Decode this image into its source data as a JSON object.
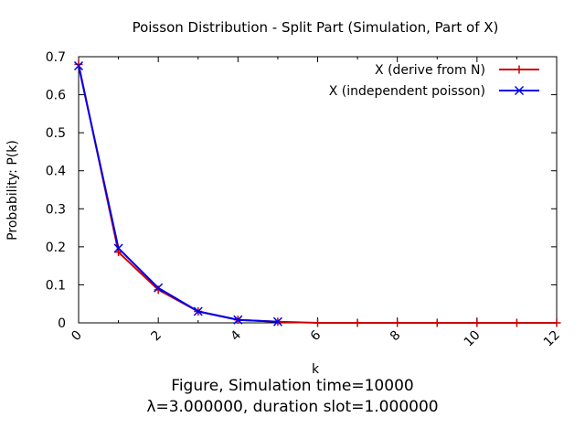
{
  "chart_data": {
    "type": "line",
    "title": "Poisson Distribution - Split Part (Simulation, Part of X)",
    "xlabel": "k",
    "ylabel": "Probability: P(k)",
    "xlim": [
      0,
      12
    ],
    "ylim": [
      0,
      0.7
    ],
    "xticks": [
      "0",
      "2",
      "4",
      "6",
      "8",
      "10",
      "12"
    ],
    "yticks": [
      "0",
      "0.1",
      "0.2",
      "0.3",
      "0.4",
      "0.5",
      "0.6",
      "0.7"
    ],
    "legend_position": "top-right",
    "grid": false,
    "series": [
      {
        "name": "X (derive from N)",
        "color": "#cc0000",
        "marker": "plus",
        "x": [
          0,
          1,
          2,
          3,
          4,
          5,
          6,
          7,
          8,
          9,
          10,
          11,
          12
        ],
        "y": [
          0.68,
          0.186,
          0.087,
          0.03,
          0.008,
          0.003,
          0.0,
          0.0,
          0.0,
          0.0,
          0.0,
          0.0,
          0.0
        ]
      },
      {
        "name": "X (independent poisson)",
        "color": "#0000ee",
        "marker": "cross",
        "x": [
          0,
          1,
          2,
          3,
          4,
          5
        ],
        "y": [
          0.676,
          0.196,
          0.092,
          0.03,
          0.008,
          0.003
        ]
      }
    ]
  },
  "caption": {
    "line1": "Figure, Simulation time=10000",
    "line2": "λ=3.000000, duration slot=1.000000"
  }
}
